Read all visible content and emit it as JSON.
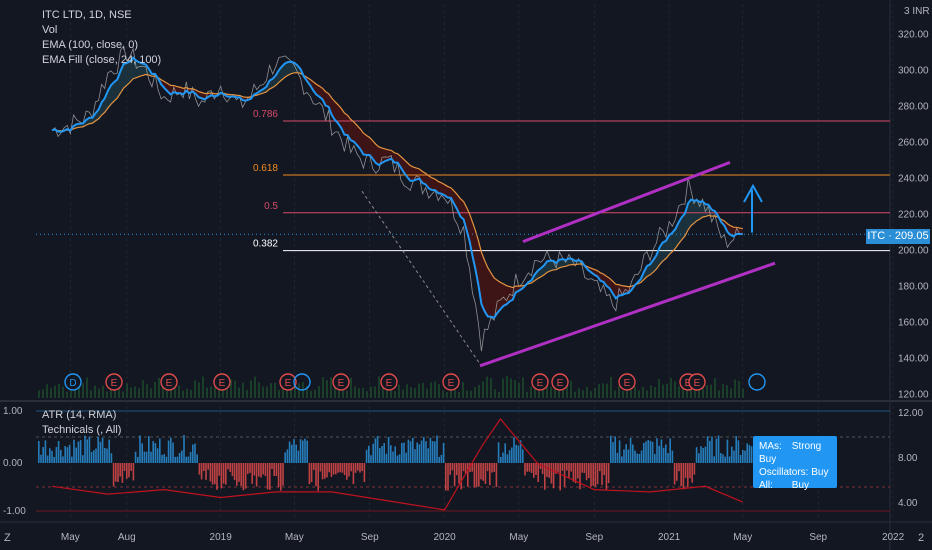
{
  "legend": {
    "title": "ITC LTD, 1D, NSE",
    "line2": "Vol",
    "line3": "EMA (100, close, 0)",
    "line4": "EMA Fill (close, 24, 100)"
  },
  "indicator_legend": {
    "line1": "ATR (14, RMA)",
    "line2": "Technicals (, All)"
  },
  "currency": "INR",
  "currency_prefix": "3",
  "price_tag": "ITC · 209.05",
  "technicals": {
    "mas_label": "MAs:",
    "mas_value": "Strong Buy",
    "osc_label": "Oscillators:",
    "osc_value": "Buy",
    "all_label": "All:",
    "all_value": "Buy"
  },
  "corner_left": "Z",
  "corner_right": "2",
  "colors": {
    "background": "#131722",
    "grid": "#2a2e39",
    "axis_text": "#b2b5be",
    "ema_fast": "#2196f3",
    "ema_slow": "#e59440",
    "fill_bear": "#4a1414",
    "fill_bull": "#1e3a44",
    "channel": "#b030c4",
    "fib": "#d84a6a",
    "fib_618": "#f08a20",
    "fib_382": "#ffffff",
    "atr": "#c0121f",
    "hist_up": "#2a8fd6",
    "hist_down": "#e04a4a",
    "arrow": "#2196f3"
  },
  "chart_data": [
    {
      "type": "line",
      "title": "ITC LTD, 1D, NSE",
      "ylim": [
        117,
        337
      ],
      "y_ticks": [
        120,
        140,
        160,
        180,
        200,
        220,
        240,
        260,
        280,
        300,
        320
      ],
      "x_ticks": [
        "May",
        "Aug",
        "2019",
        "May",
        "Sep",
        "2020",
        "May",
        "Sep",
        "2021",
        "May",
        "Sep",
        "2022"
      ],
      "series": [
        {
          "name": "ITC",
          "x": [
            "2018-04",
            "2018-05",
            "2018-06",
            "2018-07",
            "2018-08",
            "2018-09",
            "2018-10",
            "2018-11",
            "2018-12",
            "2019-01",
            "2019-02",
            "2019-03",
            "2019-04",
            "2019-05",
            "2019-06",
            "2019-07",
            "2019-08",
            "2019-09",
            "2019-10",
            "2019-11",
            "2019-12",
            "2020-01",
            "2020-02",
            "2020-03",
            "2020-04",
            "2020-05",
            "2020-06",
            "2020-07",
            "2020-08",
            "2020-09",
            "2020-10",
            "2020-11",
            "2020-12",
            "2021-01",
            "2021-02",
            "2021-03",
            "2021-04",
            "2021-05"
          ],
          "values": [
            267,
            270,
            275,
            298,
            310,
            300,
            285,
            290,
            282,
            292,
            280,
            290,
            305,
            300,
            285,
            270,
            255,
            248,
            250,
            240,
            235,
            232,
            212,
            150,
            170,
            185,
            195,
            195,
            192,
            180,
            170,
            180,
            200,
            214,
            235,
            225,
            205,
            209
          ]
        }
      ],
      "fibonacci": [
        {
          "label": "0.786",
          "value": 272
        },
        {
          "label": "0.618",
          "value": 242
        },
        {
          "label": "0.5",
          "value": 221
        },
        {
          "label": "0.382",
          "value": 200
        }
      ],
      "last_price": 209.05,
      "event_markers": [
        "D",
        "E",
        "E",
        "E",
        "E",
        "",
        "E",
        "E",
        "E",
        "E",
        "E",
        "E",
        "E",
        "E",
        ""
      ]
    },
    {
      "type": "line",
      "title": "ATR (14, RMA)",
      "ylim": [
        2.5,
        13
      ],
      "y_ticks": [
        4.0,
        8.0,
        12.0
      ],
      "left_ticks": [
        "1.00",
        "0.00",
        "-1.00"
      ],
      "series": [
        {
          "name": "ATR (14, RMA)",
          "x": [
            "2018-04",
            "2018-07",
            "2018-10",
            "2019-01",
            "2019-04",
            "2019-07",
            "2019-10",
            "2020-01",
            "2020-03",
            "2020-04",
            "2020-06",
            "2020-09",
            "2020-12",
            "2021-03",
            "2021-05"
          ],
          "values": [
            5.5,
            4.8,
            5.2,
            4.5,
            5.0,
            5.0,
            4.2,
            3.4,
            9.0,
            11.5,
            7.5,
            5.2,
            5.0,
            5.5,
            4.1
          ]
        }
      ]
    }
  ]
}
